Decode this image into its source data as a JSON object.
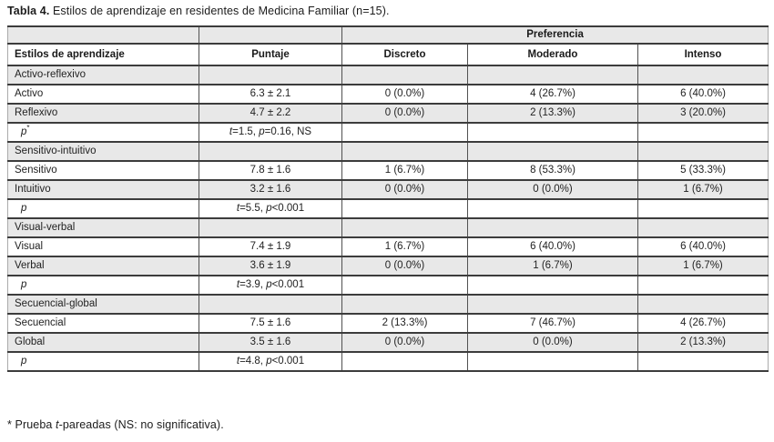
{
  "title": {
    "bold": "Tabla 4.",
    "rest": " Estilos de aprendizaje en residentes de Medicina Familiar (n=15)."
  },
  "table": {
    "preferencia_header": "Preferencia",
    "columns": [
      "Estilos de aprendizaje",
      "Puntaje",
      "Discreto",
      "Moderado",
      "Intenso"
    ],
    "rows": [
      {
        "type": "section",
        "label": "Activo-reflexivo",
        "cells": [
          "",
          "",
          "",
          ""
        ]
      },
      {
        "type": "data",
        "label": "Activo",
        "cells": [
          "6.3 ± 2.1",
          "0 (0.0%)",
          "4 (26.7%)",
          "6 (40.0%)"
        ]
      },
      {
        "type": "data",
        "label": "Reflexivo",
        "cells": [
          "4.7 ± 2.2",
          "0 (0.0%)",
          "2 (13.3%)",
          "3 (20.0%)"
        ]
      },
      {
        "type": "pvalue",
        "label": "p*",
        "cells": [
          "t=1.5, p=0.16, NS",
          "",
          "",
          ""
        ]
      },
      {
        "type": "section",
        "label": "Sensitivo-intuitivo",
        "cells": [
          "",
          "",
          "",
          ""
        ]
      },
      {
        "type": "data",
        "label": "Sensitivo",
        "cells": [
          "7.8 ± 1.6",
          "1 (6.7%)",
          "8 (53.3%)",
          "5 (33.3%)"
        ]
      },
      {
        "type": "data",
        "label": "Intuitivo",
        "cells": [
          "3.2 ± 1.6",
          "0 (0.0%)",
          "0 (0.0%)",
          "1 (6.7%)"
        ]
      },
      {
        "type": "pvalue",
        "label": "p",
        "cells": [
          "t=5.5, p<0.001",
          "",
          "",
          ""
        ]
      },
      {
        "type": "section",
        "label": "Visual-verbal",
        "cells": [
          "",
          "",
          "",
          ""
        ]
      },
      {
        "type": "data",
        "label": "Visual",
        "cells": [
          "7.4 ± 1.9",
          "1 (6.7%)",
          "6 (40.0%)",
          "6 (40.0%)"
        ]
      },
      {
        "type": "data",
        "label": "Verbal",
        "cells": [
          "3.6 ± 1.9",
          "0 (0.0%)",
          "1 (6.7%)",
          "1 (6.7%)"
        ]
      },
      {
        "type": "pvalue",
        "label": "p",
        "cells": [
          "t=3.9, p<0.001",
          "",
          "",
          ""
        ]
      },
      {
        "type": "section",
        "label": "Secuencial-global",
        "cells": [
          "",
          "",
          "",
          ""
        ]
      },
      {
        "type": "data",
        "label": "Secuencial",
        "cells": [
          "7.5 ± 1.6",
          "2 (13.3%)",
          "7 (46.7%)",
          "4 (26.7%)"
        ]
      },
      {
        "type": "data",
        "label": "Global",
        "cells": [
          "3.5 ± 1.6",
          "0 (0.0%)",
          "0 (0.0%)",
          "2 (13.3%)"
        ]
      },
      {
        "type": "pvalue",
        "label": "p",
        "cells": [
          "t=4.8, p<0.001",
          "",
          "",
          ""
        ]
      }
    ]
  },
  "footnote": "* Prueba t-pareadas (NS: no significativa)."
}
